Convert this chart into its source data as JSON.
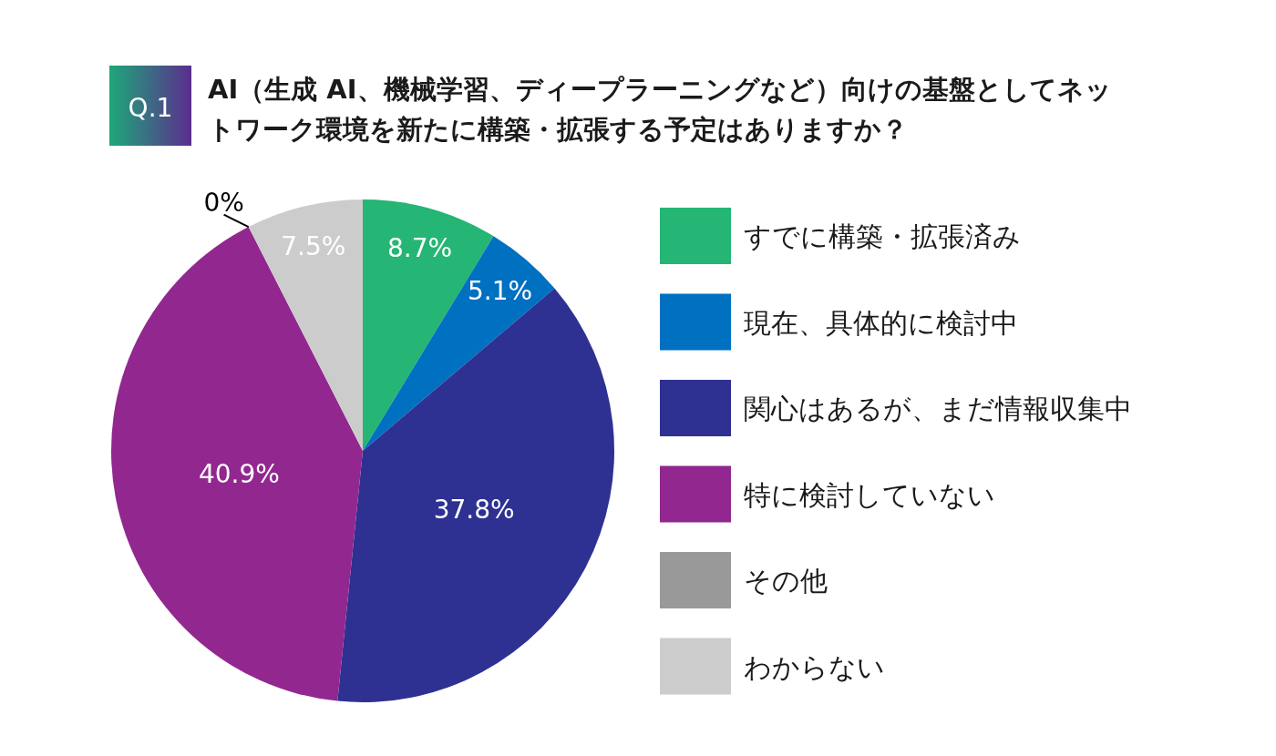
{
  "chart_data": {
    "type": "pie",
    "title": "AI（生成 AI、機械学習、ディープラーニングなど）向けの基盤としてネットワーク環境を新たに構築・拡張する予定はありますか？",
    "annotations": [
      "Q.1"
    ],
    "categories": [
      "すでに構築・拡張済み",
      "現在、具体的に検討中",
      "関心はあるが、まだ情報収集中",
      "特に検討していない",
      "その他",
      "わからない"
    ],
    "values": [
      8.7,
      5.1,
      37.8,
      40.9,
      0,
      7.5
    ],
    "value_labels": [
      "8.7%",
      "5.1%",
      "37.8%",
      "40.9%",
      "0%",
      "7.5%"
    ],
    "colors": [
      "#25b574",
      "#0070c0",
      "#2e3192",
      "#92278f",
      "#999999",
      "#cccccc"
    ],
    "legend": "right"
  }
}
